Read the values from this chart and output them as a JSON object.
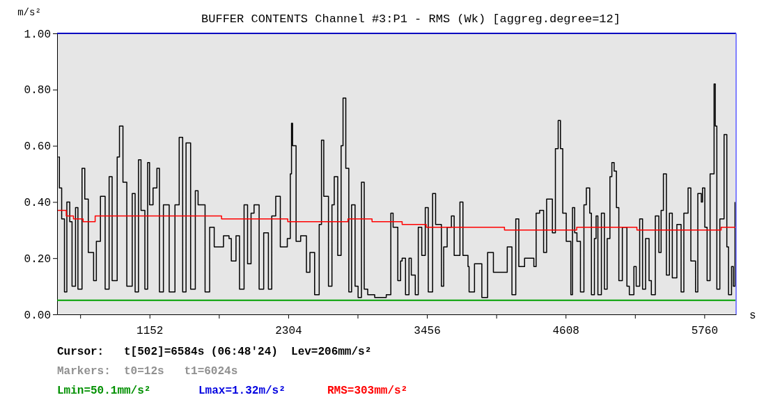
{
  "chart_data": {
    "type": "step",
    "title": "BUFFER CONTENTS  Channel #3:P1  -  RMS (Wk) [aggreg.degree=12]",
    "ylabel": "m/s²",
    "xlabel": "s",
    "xlim": [
      384,
      6024
    ],
    "ylim": [
      0,
      1
    ],
    "xticks": [
      {
        "value": 576,
        "label": null
      },
      1152,
      {
        "value": 1728,
        "label": null
      },
      2304,
      {
        "value": 2880,
        "label": null
      },
      3456,
      {
        "value": 4032,
        "label": null
      },
      4608,
      {
        "value": 5184,
        "label": null
      },
      5760
    ],
    "yticks": [
      {
        "value": 0,
        "label": "0.00"
      },
      {
        "value": 0.2,
        "label": "0.20"
      },
      {
        "value": 0.4,
        "label": "0.40"
      },
      {
        "value": 0.6,
        "label": "0.60"
      },
      {
        "value": 0.8,
        "label": "0.80"
      },
      {
        "value": 1,
        "label": "1.00"
      }
    ],
    "grid": false,
    "series": [
      {
        "color": "#000000",
        "x": [
          393,
          403,
          422,
          445,
          465,
          489,
          508,
          537,
          557,
          591,
          614,
          643,
          687,
          710,
          744,
          783,
          816,
          841,
          883,
          902,
          931,
          963,
          1008,
          1032,
          1060,
          1081,
          1113,
          1136,
          1152,
          1181,
          1213,
          1234,
          1267,
          1315,
          1363,
          1398,
          1427,
          1455,
          1493,
          1532,
          1555,
          1613,
          1651,
          1689,
          1766,
          1812,
          1831,
          1870,
          1899,
          1937,
          1966,
          1995,
          2020,
          2062,
          2100,
          2139,
          2167,
          2200,
          2238,
          2296,
          2321,
          2331,
          2340,
          2369,
          2407,
          2455,
          2484,
          2523,
          2561,
          2580,
          2599,
          2638,
          2667,
          2686,
          2715,
          2743,
          2759,
          2782,
          2807,
          2830,
          2859,
          2884,
          2912,
          2935,
          2964,
          3022,
          3118,
          3156,
          3175,
          3214,
          3237,
          3250,
          3278,
          3307,
          3326,
          3359,
          3384,
          3413,
          3442,
          3467,
          3503,
          3528,
          3576,
          3595,
          3624,
          3659,
          3682,
          3730,
          3755,
          3797,
          3806,
          3851,
          3912,
          3960,
          4008,
          4066,
          4123,
          4162,
          4194,
          4219,
          4267,
          4344,
          4363,
          4392,
          4425,
          4450,
          4498,
          4523,
          4546,
          4565,
          4584,
          4613,
          4651,
          4665,
          4683,
          4702,
          4731,
          4760,
          4780,
          4808,
          4822,
          4847,
          4861,
          4876,
          4905,
          4930,
          4953,
          4976,
          4992,
          5011,
          5030,
          5050,
          5079,
          5098,
          5117,
          5137,
          5175,
          5194,
          5223,
          5247,
          5272,
          5301,
          5320,
          5353,
          5382,
          5401,
          5420,
          5445,
          5470,
          5494,
          5532,
          5567,
          5590,
          5625,
          5648,
          5687,
          5706,
          5735,
          5745,
          5764,
          5783,
          5808,
          5841,
          5851,
          5864,
          5889,
          5924,
          5947,
          5961,
          5986,
          6001,
          6015
        ],
        "values": [
          0.56,
          0.45,
          0.34,
          0.08,
          0.4,
          0.33,
          0.1,
          0.38,
          0.09,
          0.52,
          0.41,
          0.22,
          0.12,
          0.26,
          0.42,
          0.09,
          0.49,
          0.12,
          0.56,
          0.67,
          0.47,
          0.1,
          0.43,
          0.08,
          0.55,
          0.37,
          0.09,
          0.54,
          0.39,
          0.45,
          0.52,
          0.08,
          0.39,
          0.08,
          0.39,
          0.63,
          0.08,
          0.61,
          0.09,
          0.44,
          0.39,
          0.08,
          0.31,
          0.24,
          0.28,
          0.27,
          0.19,
          0.28,
          0.09,
          0.39,
          0.18,
          0.36,
          0.39,
          0.09,
          0.29,
          0.09,
          0.35,
          0.42,
          0.24,
          0.27,
          0.5,
          0.68,
          0.6,
          0.26,
          0.28,
          0.15,
          0.22,
          0.07,
          0.32,
          0.62,
          0.42,
          0.1,
          0.39,
          0.49,
          0.21,
          0.6,
          0.77,
          0.52,
          0.08,
          0.39,
          0.1,
          0.06,
          0.47,
          0.09,
          0.07,
          0.06,
          0.07,
          0.36,
          0.31,
          0.12,
          0.19,
          0.2,
          0.07,
          0.2,
          0.14,
          0.07,
          0.31,
          0.21,
          0.38,
          0.08,
          0.43,
          0.32,
          0.1,
          0.24,
          0.31,
          0.35,
          0.21,
          0.4,
          0.21,
          0.17,
          0.08,
          0.18,
          0.06,
          0.22,
          0.15,
          0.15,
          0.24,
          0.07,
          0.34,
          0.17,
          0.2,
          0.17,
          0.36,
          0.37,
          0.22,
          0.41,
          0.29,
          0.59,
          0.69,
          0.59,
          0.36,
          0.26,
          0.07,
          0.38,
          0.29,
          0.26,
          0.08,
          0.39,
          0.45,
          0.36,
          0.07,
          0.27,
          0.35,
          0.07,
          0.36,
          0.09,
          0.27,
          0.49,
          0.54,
          0.51,
          0.38,
          0.12,
          0.31,
          0.31,
          0.1,
          0.07,
          0.17,
          0.1,
          0.34,
          0.09,
          0.27,
          0.12,
          0.07,
          0.35,
          0.22,
          0.37,
          0.5,
          0.14,
          0.36,
          0.13,
          0.32,
          0.08,
          0.36,
          0.45,
          0.19,
          0.08,
          0.43,
          0.4,
          0.45,
          0.31,
          0.12,
          0.5,
          0.82,
          0.67,
          0.09,
          0.34,
          0.64,
          0.24,
          0.07,
          0.17,
          0.1,
          0.4
        ]
      },
      {
        "color": "#ff0000",
        "x": [
          390,
          460,
          520,
          600,
          700,
          1000,
          1300,
          1500,
          1750,
          2000,
          2300,
          2550,
          2800,
          3000,
          3250,
          3450,
          3900,
          4100,
          4500,
          4700,
          5200,
          5900,
          6020
        ],
        "values": [
          0.37,
          0.35,
          0.34,
          0.33,
          0.35,
          0.35,
          0.35,
          0.35,
          0.34,
          0.34,
          0.33,
          0.33,
          0.34,
          0.33,
          0.32,
          0.31,
          0.31,
          0.3,
          0.3,
          0.31,
          0.3,
          0.31,
          0.31
        ]
      }
    ],
    "ref_lines": [
      {
        "axis": "y",
        "value": 0.05,
        "color": "#00a000"
      },
      {
        "axis": "y",
        "value": 1,
        "color": "#0000c0"
      },
      {
        "axis": "x",
        "value": 6024,
        "color": "#8080ff"
      }
    ],
    "annotations": [
      "Cursor:   t[502]=6584s (06:48'24)  Lev=206mm/s²",
      "Markers:  t0=12s   t1=6024s",
      "Lmin=50.1mm/s²",
      "Lmax=1.32m/s²",
      "RMS=303mm/s²"
    ]
  }
}
